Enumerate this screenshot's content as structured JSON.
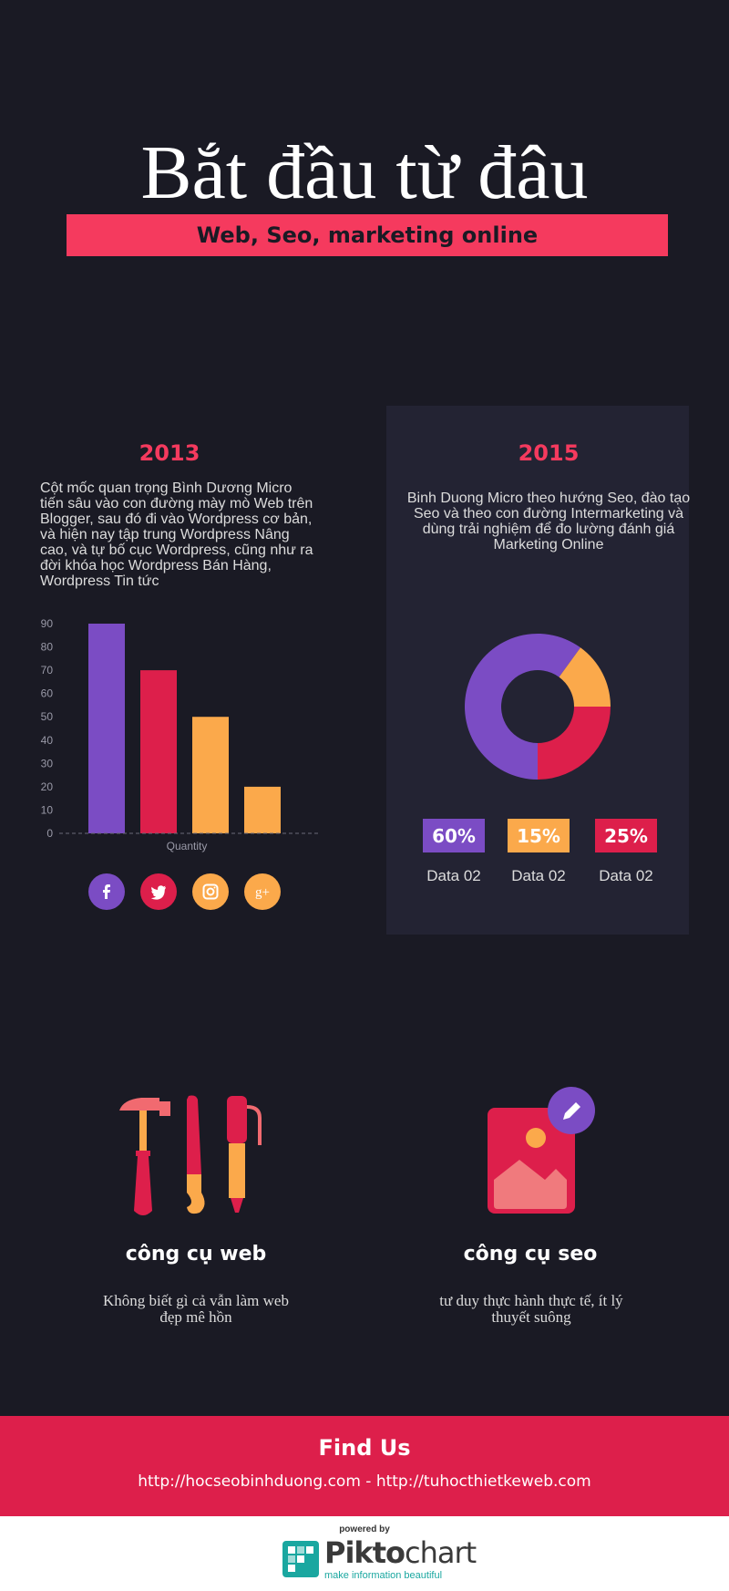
{
  "header": {
    "title": "Bắt đầu từ đâu",
    "subtitle": "Web, Seo, marketing online"
  },
  "left": {
    "year": "2013",
    "text": "Cột mốc quan trọng Bình Dương Micro tiến sâu vào con đường mày mò Web trên Blogger, sau đó đi vào Wordpress cơ bản, và hiện nay tập trung Wordpress Nâng cao, và tự bố cục Wordpress, cũng như ra đời khóa học Wordpress Bán Hàng, Wordpress Tin tức"
  },
  "right": {
    "year": "2015",
    "text": "Binh Duong Micro theo hướng Seo, đào tạo Seo và theo con đường Intermarketing và dùng trải nghiệm để đo lường đánh giá Marketing Online"
  },
  "chart_data": [
    {
      "type": "bar",
      "categories": [
        "",
        "",
        "",
        ""
      ],
      "values": [
        90,
        70,
        50,
        20
      ],
      "colors": [
        "#7b4cc4",
        "#dd1f4b",
        "#fba94b",
        "#fba94b"
      ],
      "xlabel": "Quantity",
      "ylim": [
        0,
        90
      ],
      "yticks": [
        0,
        10,
        20,
        30,
        40,
        50,
        60,
        70,
        80,
        90
      ]
    },
    {
      "type": "pie",
      "donut": true,
      "slices": [
        {
          "label": "Data 02",
          "value": 60,
          "color": "#7b4cc4",
          "display": "60%"
        },
        {
          "label": "Data 02",
          "value": 15,
          "color": "#fba94b",
          "display": "15%"
        },
        {
          "label": "Data 02",
          "value": 25,
          "color": "#dd1f4b",
          "display": "25%"
        }
      ]
    }
  ],
  "social": [
    {
      "name": "facebook",
      "glyph": "f",
      "color": "#7b4cc4"
    },
    {
      "name": "twitter",
      "glyph": "t",
      "color": "#dd1f4b"
    },
    {
      "name": "instagram",
      "glyph": "ig",
      "color": "#fba94b"
    },
    {
      "name": "google-plus",
      "glyph": "g+",
      "color": "#fba94b"
    }
  ],
  "tools": {
    "web": {
      "title": "công cụ web",
      "desc": "Không biết gì cả vẫn làm web đẹp mê hồn"
    },
    "seo": {
      "title": "công cụ seo",
      "desc": "tư duy thực hành thực tế, ít lý thuyết suông"
    }
  },
  "findus": {
    "title": "Find Us",
    "links": "http://hocseobinhduong.com - http://tuhocthietkeweb.com"
  },
  "footer": {
    "powered": "powered by",
    "brand_a": "Pikto",
    "brand_b": "chart",
    "tagline": "make information beautiful"
  }
}
